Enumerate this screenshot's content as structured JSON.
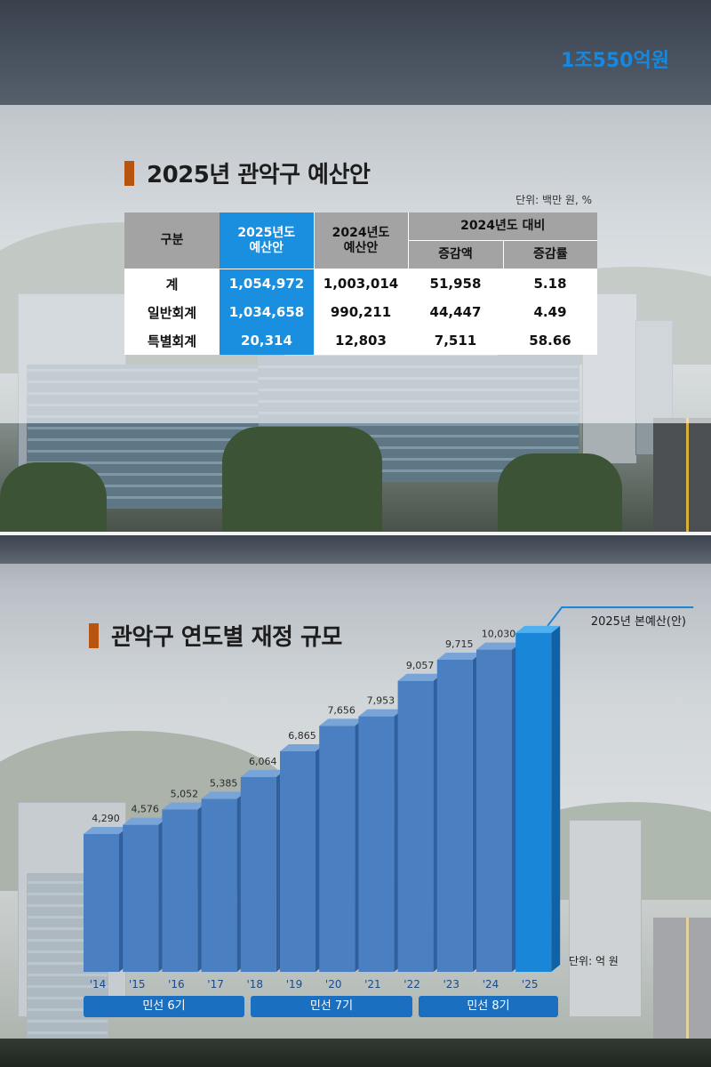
{
  "panel1": {
    "title": "2025년 관악구 예산안",
    "unit": "단위: 백만 원, %",
    "table": {
      "head_category": "구분",
      "head_2025": "2025년도\n예산안",
      "head_2024": "2024년도\n예산안",
      "head_compare": "2024년도 대비",
      "head_diff": "증감액",
      "head_rate": "증감률",
      "rows": [
        {
          "label": "계",
          "v2025": "1,054,972",
          "v2024": "1,003,014",
          "diff": "51,958",
          "rate": "5.18"
        },
        {
          "label": "일반회계",
          "v2025": "1,034,658",
          "v2024": "990,211",
          "diff": "44,447",
          "rate": "4.49"
        },
        {
          "label": "특별회계",
          "v2025": "20,314",
          "v2024": "12,803",
          "diff": "7,511",
          "rate": "58.66"
        }
      ]
    }
  },
  "panel2": {
    "title": "관악구 연도별 재정 규모",
    "callout_main": "1조550억원",
    "callout_sub": "2025년 본예산(안)",
    "unit": "단위: 억 원",
    "terms": [
      "민선 6기",
      "민선 7기",
      "민선 8기"
    ]
  },
  "chart_data": {
    "type": "bar",
    "title": "관악구 연도별 재정 규모",
    "categories": [
      "'14",
      "'15",
      "'16",
      "'17",
      "'18",
      "'19",
      "'20",
      "'21",
      "'22",
      "'23",
      "'24",
      "'25"
    ],
    "values": [
      4290,
      4576,
      5052,
      5385,
      6064,
      6865,
      7656,
      7953,
      9057,
      9715,
      10030,
      10550
    ],
    "data_labels": [
      "4,290",
      "4,576",
      "5,052",
      "5,385",
      "6,064",
      "6,865",
      "7,656",
      "7,953",
      "9,057",
      "9,715",
      "10,030",
      ""
    ],
    "ylabel": "단위: 억 원",
    "highlight_index": 11,
    "highlight_label": "1조550억원",
    "colors": {
      "bar": "#4a7fc1",
      "bar_top": "#78a4d8",
      "bar_side": "#2f5f9c",
      "highlight": "#1a86d8",
      "highlight_top": "#4fb0f0",
      "highlight_side": "#0f62a8"
    },
    "grid": false,
    "legend": "none"
  },
  "colors": {
    "accent_bar": "#b7540f",
    "table_highlight": "#1a8fe0",
    "term_box": "#1a6fc0"
  }
}
